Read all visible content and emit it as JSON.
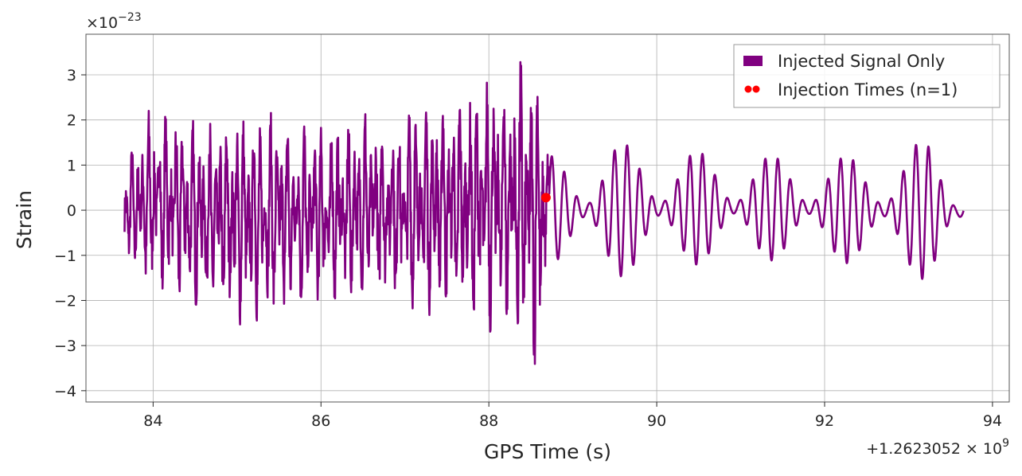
{
  "chart_data": {
    "type": "line",
    "xlabel": "GPS Time (s)",
    "ylabel": "Strain",
    "x_offset_label": "+1.2623052 × 10",
    "x_offset_exp": "9",
    "y_scale_label": "×10",
    "y_scale_exp": "−23",
    "xlim": [
      83.2,
      94.2
    ],
    "ylim": [
      -4.25,
      3.9
    ],
    "x_ticks": [
      84,
      86,
      88,
      90,
      92,
      94
    ],
    "x_tick_labels": [
      "84",
      "86",
      "88",
      "90",
      "92",
      "94"
    ],
    "y_ticks": [
      -4,
      -3,
      -2,
      -1,
      0,
      1,
      2,
      3
    ],
    "y_tick_labels": [
      "−4",
      "−3",
      "−2",
      "−1",
      "0",
      "1",
      "2",
      "3"
    ],
    "grid": true,
    "legend_position": "top-right",
    "series": [
      {
        "name": "Injected Signal Only",
        "color": "#800080",
        "x_range": [
          83.66,
          93.66
        ],
        "approx_envelope": [
          {
            "x": 83.66,
            "min": -1.2,
            "max": 1.1
          },
          {
            "x": 84.0,
            "min": -1.9,
            "max": 2.4
          },
          {
            "x": 84.5,
            "min": -2.2,
            "max": 2.0
          },
          {
            "x": 84.8,
            "min": -2.6,
            "max": 2.2
          },
          {
            "x": 85.5,
            "min": -2.4,
            "max": 2.2
          },
          {
            "x": 86.0,
            "min": -2.2,
            "max": 2.0
          },
          {
            "x": 86.5,
            "min": -2.1,
            "max": 2.2
          },
          {
            "x": 87.2,
            "min": -2.4,
            "max": 2.6
          },
          {
            "x": 87.8,
            "min": -2.6,
            "max": 2.8
          },
          {
            "x": 88.3,
            "min": -3.0,
            "max": 3.4
          },
          {
            "x": 88.6,
            "min": -3.85,
            "max": 3.5
          },
          {
            "x": 88.72,
            "min": -1.2,
            "max": 1.2
          },
          {
            "x": 89.5,
            "min": -1.5,
            "max": 1.5
          },
          {
            "x": 90.5,
            "min": -1.2,
            "max": 1.3
          },
          {
            "x": 91.5,
            "min": -1.1,
            "max": 1.2
          },
          {
            "x": 92.5,
            "min": -1.2,
            "max": 1.2
          },
          {
            "x": 93.3,
            "min": -1.6,
            "max": 1.6
          },
          {
            "x": 93.66,
            "min": -0.9,
            "max": 0.8
          }
        ]
      },
      {
        "name": "Injection Times (n=1)",
        "color": "#ff0000",
        "type": "scatter",
        "points": [
          {
            "x": 88.68,
            "y": 0.28
          }
        ]
      }
    ]
  }
}
